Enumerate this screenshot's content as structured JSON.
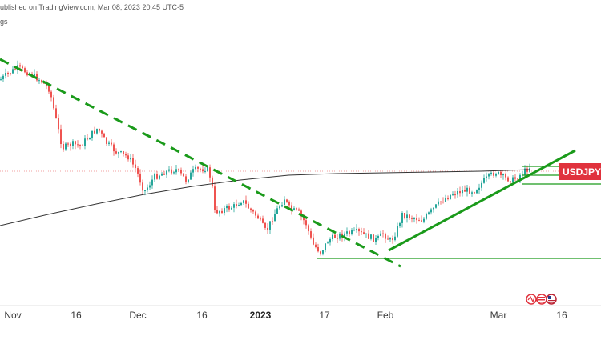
{
  "header": {
    "published_text": "ublished on TradingView.com, Mar 08, 2023 20:45 UTC-5",
    "sub_text": "gs"
  },
  "colors": {
    "up": "#26a69a",
    "down": "#ef5350",
    "trend": "#1a9a1a",
    "ma": "#333333",
    "ref": "#f2a0a0",
    "label_bg": "#e0323d"
  },
  "chart_data": {
    "type": "candlestick",
    "symbol": "USDJPY",
    "x_ticks": [
      {
        "label": "Nov",
        "bold": false
      },
      {
        "label": "16",
        "bold": false
      },
      {
        "label": "Dec",
        "bold": false
      },
      {
        "label": "16",
        "bold": false
      },
      {
        "label": "2023",
        "bold": true
      },
      {
        "label": "17",
        "bold": false
      },
      {
        "label": "Feb",
        "bold": false
      },
      {
        "label": "Mar",
        "bold": false
      },
      {
        "label": "16",
        "bold": false
      }
    ],
    "annotations": [
      {
        "type": "dashed-trendline",
        "description": "descending resistance line",
        "color": "green"
      },
      {
        "type": "solid-trendline",
        "description": "ascending support line",
        "color": "green"
      },
      {
        "type": "horizontal-line",
        "description": "support level",
        "color": "green"
      },
      {
        "type": "horizontal-line",
        "description": "upper box level",
        "color": "green"
      },
      {
        "type": "moving-average",
        "description": "long-period moving average",
        "color": "dark gray"
      }
    ],
    "grid": false,
    "legend": "none"
  }
}
